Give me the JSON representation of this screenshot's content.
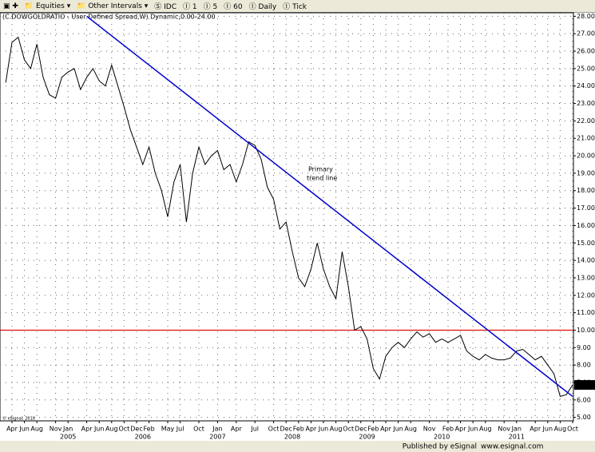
{
  "toolbar": {
    "buttons": [
      "Equities",
      "Other Intervals",
      "IDC",
      "1",
      "5",
      "60",
      "Daily",
      "Tick"
    ]
  },
  "chart_data": {
    "type": "line",
    "title": "(C.DOWGOLDRATIO - User Defined Spread,W) Dynamic,0.00-24.00",
    "series": [
      {
        "name": "C.DOWGOLDRATIO",
        "color": "#000000",
        "x": [
          "2004-03",
          "2004-04",
          "2004-05",
          "2004-06",
          "2004-07",
          "2004-08",
          "2004-09",
          "2004-10",
          "2004-11",
          "2004-12",
          "2005-01",
          "2005-02",
          "2005-03",
          "2005-04",
          "2005-05",
          "2005-06",
          "2005-07",
          "2005-08",
          "2005-09",
          "2005-10",
          "2005-11",
          "2005-12",
          "2006-01",
          "2006-02",
          "2006-03",
          "2006-04",
          "2006-05",
          "2006-06",
          "2006-07",
          "2006-08",
          "2006-09",
          "2006-10",
          "2006-11",
          "2006-12",
          "2007-01",
          "2007-02",
          "2007-03",
          "2007-04",
          "2007-05",
          "2007-06",
          "2007-07",
          "2007-08",
          "2007-09",
          "2007-10",
          "2007-11",
          "2007-12",
          "2008-01",
          "2008-02",
          "2008-03",
          "2008-04",
          "2008-05",
          "2008-06",
          "2008-07",
          "2008-08",
          "2008-09",
          "2008-10",
          "2008-11",
          "2008-12",
          "2009-01",
          "2009-02",
          "2009-03",
          "2009-04",
          "2009-05",
          "2009-06",
          "2009-07",
          "2009-08",
          "2009-09",
          "2009-10",
          "2009-11",
          "2009-12",
          "2010-01",
          "2010-02",
          "2010-03",
          "2010-04",
          "2010-05",
          "2010-06",
          "2010-07",
          "2010-08",
          "2010-09",
          "2010-10",
          "2010-11",
          "2010-12",
          "2011-01",
          "2011-02",
          "2011-03",
          "2011-04",
          "2011-05",
          "2011-06",
          "2011-07",
          "2011-08",
          "2011-09",
          "2011-10"
        ],
        "values": [
          24.2,
          26.5,
          26.8,
          25.5,
          25.0,
          26.4,
          24.5,
          23.5,
          23.3,
          24.5,
          24.8,
          25.0,
          23.8,
          24.5,
          25.0,
          24.3,
          24.0,
          25.2,
          24.0,
          22.8,
          21.5,
          20.5,
          19.5,
          20.5,
          19.0,
          18.0,
          16.5,
          18.5,
          19.5,
          16.2,
          19.0,
          20.5,
          19.5,
          20.0,
          20.3,
          19.2,
          19.5,
          18.5,
          19.5,
          20.8,
          20.6,
          19.8,
          18.2,
          17.5,
          15.8,
          16.2,
          14.5,
          13.0,
          12.5,
          13.5,
          15.0,
          13.5,
          12.5,
          11.8,
          14.5,
          12.5,
          10.0,
          10.2,
          9.5,
          7.8,
          7.2,
          8.5,
          9.0,
          9.3,
          9.0,
          9.5,
          9.9,
          9.6,
          9.8,
          9.3,
          9.5,
          9.3,
          9.5,
          9.7,
          8.8,
          8.5,
          8.3,
          8.6,
          8.4,
          8.3,
          8.3,
          8.4,
          8.8,
          8.9,
          8.6,
          8.3,
          8.5,
          8.0,
          7.5,
          6.2,
          6.3,
          6.86
        ]
      }
    ],
    "current_value": 6.86,
    "trend_line": {
      "x": [
        "2005-04",
        "2011-10"
      ],
      "values": [
        28.0,
        6.2
      ],
      "color": "#0000cc"
    },
    "reference_line": {
      "value": 10,
      "color": "#dd0000"
    },
    "annotation": [
      "Primary",
      "trend line"
    ],
    "ylim": [
      4.8,
      28.2
    ],
    "yticks": [
      {
        "value": 5,
        "label": "5.00"
      },
      {
        "value": 6,
        "label": "6.00"
      },
      {
        "value": 7,
        "label": "7.00"
      },
      {
        "value": 8,
        "label": "8.00"
      },
      {
        "value": 9,
        "label": "9.00"
      },
      {
        "value": 10,
        "label": "10.00"
      },
      {
        "value": 11,
        "label": "11.00"
      },
      {
        "value": 12,
        "label": "12.00"
      },
      {
        "value": 13,
        "label": "13.00"
      },
      {
        "value": 14,
        "label": "14.00"
      },
      {
        "value": 15,
        "label": "15.00"
      },
      {
        "value": 16,
        "label": "16.00"
      },
      {
        "value": 17,
        "label": "17.00"
      },
      {
        "value": 18,
        "label": "18.00"
      },
      {
        "value": 19,
        "label": "19.00"
      },
      {
        "value": 20,
        "label": "20.00"
      },
      {
        "value": 21,
        "label": "21.00"
      },
      {
        "value": 22,
        "label": "22.00"
      },
      {
        "value": 23,
        "label": "23.00"
      },
      {
        "value": 24,
        "label": "24.00"
      },
      {
        "value": 25,
        "label": "25.00"
      },
      {
        "value": 26,
        "label": "26.00"
      },
      {
        "value": 27,
        "label": "27.00"
      },
      {
        "value": 28,
        "label": "28.00"
      }
    ],
    "xticks": [
      {
        "value": "2004-04",
        "label": "Apr"
      },
      {
        "value": "2004-06",
        "label": "Jun"
      },
      {
        "value": "2004-08",
        "label": "Aug"
      },
      {
        "value": "2004-11",
        "label": "Nov"
      },
      {
        "value": "2005-01",
        "label": "Jan"
      },
      {
        "value": "2005-04",
        "label": "Apr"
      },
      {
        "value": "2005-06",
        "label": "Jun"
      },
      {
        "value": "2005-08",
        "label": "Aug"
      },
      {
        "value": "2005-10",
        "label": "Oct"
      },
      {
        "value": "2005-12",
        "label": "Dec"
      },
      {
        "value": "2006-02",
        "label": "Feb"
      },
      {
        "value": "2006-05",
        "label": "May"
      },
      {
        "value": "2006-07",
        "label": "Jul"
      },
      {
        "value": "2006-10",
        "label": "Oct"
      },
      {
        "value": "2007-01",
        "label": "Jan"
      },
      {
        "value": "2007-04",
        "label": "Apr"
      },
      {
        "value": "2007-07",
        "label": "Jul"
      },
      {
        "value": "2007-10",
        "label": "Oct"
      },
      {
        "value": "2007-12",
        "label": "Dec"
      },
      {
        "value": "2008-02",
        "label": "Feb"
      },
      {
        "value": "2008-04",
        "label": "Apr"
      },
      {
        "value": "2008-06",
        "label": "Jun"
      },
      {
        "value": "2008-08",
        "label": "Aug"
      },
      {
        "value": "2008-10",
        "label": "Oct"
      },
      {
        "value": "2008-12",
        "label": "Dec"
      },
      {
        "value": "2009-02",
        "label": "Feb"
      },
      {
        "value": "2009-04",
        "label": "Apr"
      },
      {
        "value": "2009-06",
        "label": "Jun"
      },
      {
        "value": "2009-08",
        "label": "Aug"
      },
      {
        "value": "2009-11",
        "label": "Nov"
      },
      {
        "value": "2010-02",
        "label": "Feb"
      },
      {
        "value": "2010-04",
        "label": "Apr"
      },
      {
        "value": "2010-06",
        "label": "Jun"
      },
      {
        "value": "2010-08",
        "label": "Aug"
      },
      {
        "value": "2010-11",
        "label": "Nov"
      },
      {
        "value": "2011-01",
        "label": "Jan"
      },
      {
        "value": "2011-04",
        "label": "Apr"
      },
      {
        "value": "2011-06",
        "label": "Jun"
      },
      {
        "value": "2011-08",
        "label": "Aug"
      },
      {
        "value": "2011-10",
        "label": "Oct"
      }
    ],
    "year_ticks": [
      {
        "value": "2005-01",
        "label": "2005"
      },
      {
        "value": "2006-01",
        "label": "2006"
      },
      {
        "value": "2007-01",
        "label": "2007"
      },
      {
        "value": "2008-01",
        "label": "2008"
      },
      {
        "value": "2009-01",
        "label": "2009"
      },
      {
        "value": "2010-01",
        "label": "2010"
      },
      {
        "value": "2011-01",
        "label": "2011"
      }
    ],
    "grid": true
  },
  "footer": {
    "copyright": "© eSignal, 2010",
    "published": "Published by eSignal",
    "url": "www.esignal.com"
  }
}
